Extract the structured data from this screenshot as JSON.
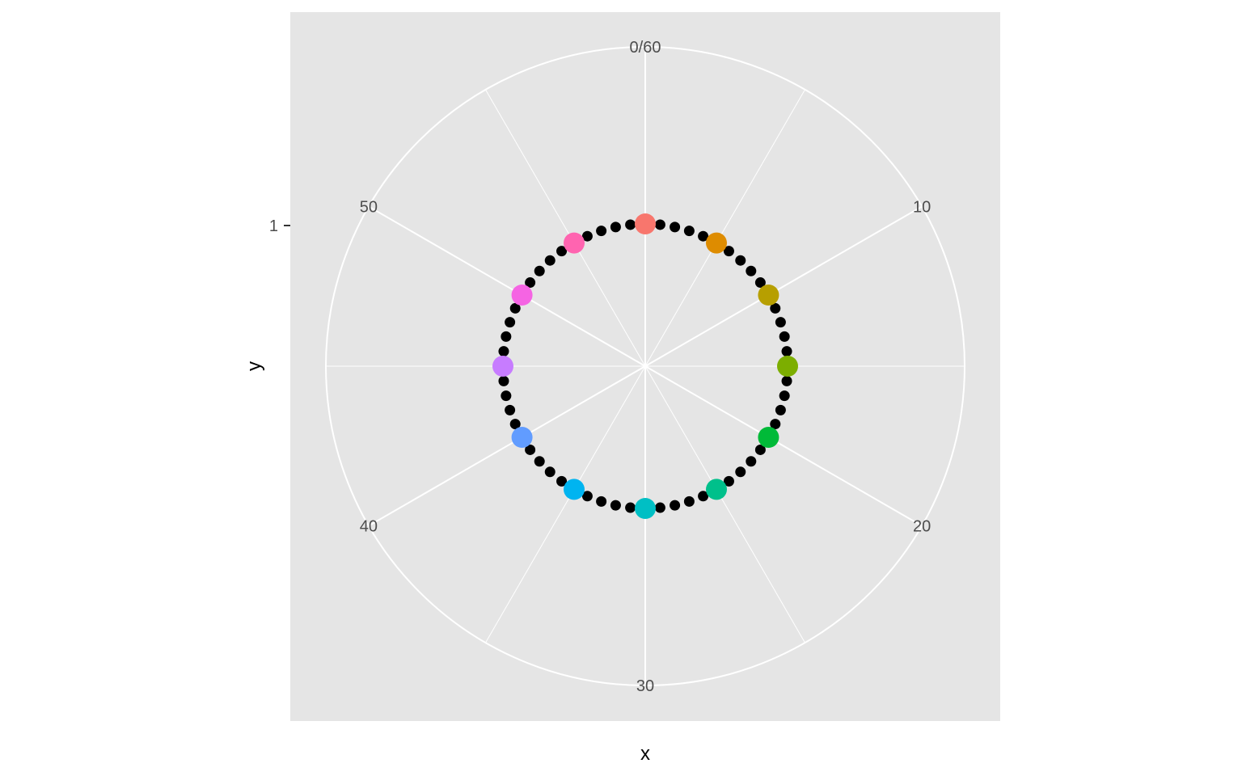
{
  "chart_data": {
    "type": "scatter",
    "coord": "polar",
    "title": "",
    "xlabel": "x",
    "ylabel": "y",
    "xlim": [
      0,
      60
    ],
    "x_ticks": [
      {
        "value": 0,
        "label": "0/60"
      },
      {
        "value": 10,
        "label": "10"
      },
      {
        "value": 20,
        "label": "20"
      },
      {
        "value": 30,
        "label": "30"
      },
      {
        "value": 40,
        "label": "40"
      },
      {
        "value": 50,
        "label": "50"
      }
    ],
    "y_ticks": [
      {
        "value": 1,
        "label": "1"
      }
    ],
    "grid": true,
    "panel_background": "#e5e5e5",
    "grid_color": "#ffffff",
    "legend": "none",
    "series": [
      {
        "color": "#000000",
        "marker": "small",
        "x": [
          0,
          1,
          2,
          3,
          4,
          5,
          6,
          7,
          8,
          9,
          10,
          11,
          12,
          13,
          14,
          15,
          16,
          17,
          18,
          19,
          20,
          21,
          22,
          23,
          24,
          25,
          26,
          27,
          28,
          29,
          30,
          31,
          32,
          33,
          34,
          35,
          36,
          37,
          38,
          39,
          40,
          41,
          42,
          43,
          44,
          45,
          46,
          47,
          48,
          49,
          50,
          51,
          52,
          53,
          54,
          55,
          56,
          57,
          58,
          59
        ],
        "y": [
          1,
          1,
          1,
          1,
          1,
          1,
          1,
          1,
          1,
          1,
          1,
          1,
          1,
          1,
          1,
          1,
          1,
          1,
          1,
          1,
          1,
          1,
          1,
          1,
          1,
          1,
          1,
          1,
          1,
          1,
          1,
          1,
          1,
          1,
          1,
          1,
          1,
          1,
          1,
          1,
          1,
          1,
          1,
          1,
          1,
          1,
          1,
          1,
          1,
          1,
          1,
          1,
          1,
          1,
          1,
          1,
          1,
          1,
          1,
          1
        ]
      },
      {
        "marker": "large",
        "x": [
          0,
          5,
          10,
          15,
          20,
          25,
          30,
          35,
          40,
          45,
          50,
          55
        ],
        "y": [
          1,
          1,
          1,
          1,
          1,
          1,
          1,
          1,
          1,
          1,
          1,
          1
        ],
        "colors": [
          "#F8766D",
          "#DE8C00",
          "#B79F00",
          "#7CAE00",
          "#00BA38",
          "#00C08B",
          "#00BFC4",
          "#00B4F0",
          "#619CFF",
          "#C77CFF",
          "#F564E3",
          "#FF64B0"
        ]
      }
    ]
  }
}
